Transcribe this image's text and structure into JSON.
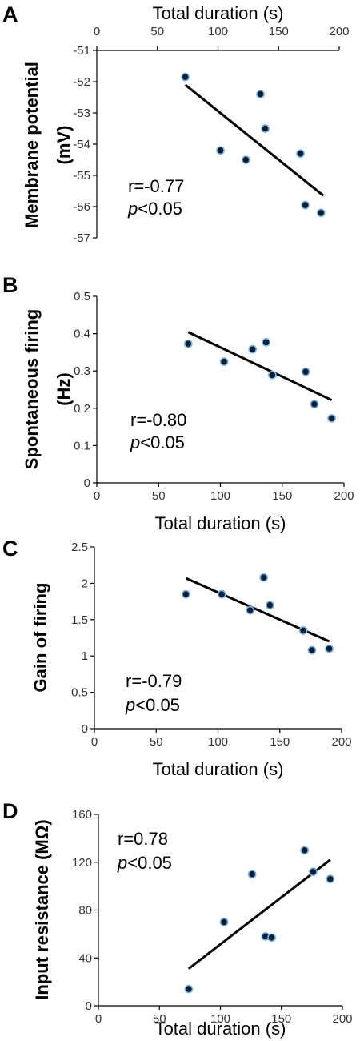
{
  "chart_data": [
    {
      "panel": "A",
      "type": "scatter",
      "xlabel": "Total duration (s)",
      "xaxis_position": "top",
      "xlim": [
        0,
        200
      ],
      "xticks": [
        0,
        50,
        100,
        150,
        200
      ],
      "ylabel_lines": [
        "Membrane potential",
        "(mV)"
      ],
      "ylim": [
        -57,
        -51
      ],
      "yticks": [
        -51,
        -52,
        -53,
        -54,
        -55,
        -56,
        -57
      ],
      "points": [
        {
          "x": 73,
          "y": -51.85
        },
        {
          "x": 102,
          "y": -54.2
        },
        {
          "x": 123,
          "y": -54.5
        },
        {
          "x": 135,
          "y": -52.4
        },
        {
          "x": 139,
          "y": -53.5
        },
        {
          "x": 168,
          "y": -54.3
        },
        {
          "x": 172,
          "y": -55.95
        },
        {
          "x": 185,
          "y": -56.2
        }
      ],
      "fit_line": {
        "x": [
          73,
          187
        ],
        "y": [
          -52.1,
          -55.65
        ]
      },
      "stat_r": "r=-0.77",
      "stat_p": "<0.05"
    },
    {
      "panel": "B",
      "type": "scatter",
      "xlabel": "Total duration (s)",
      "xaxis_position": "bottom",
      "xlim": [
        0,
        200
      ],
      "xticks": [
        0,
        50,
        100,
        150,
        200
      ],
      "ylabel_lines": [
        "Spontaneous firing",
        "(Hz)"
      ],
      "ylim": [
        0,
        0.5
      ],
      "yticks": [
        0,
        0.1,
        0.2,
        0.3,
        0.4,
        0.5
      ],
      "points": [
        {
          "x": 74,
          "y": 0.373
        },
        {
          "x": 103,
          "y": 0.325
        },
        {
          "x": 126,
          "y": 0.358
        },
        {
          "x": 137,
          "y": 0.377
        },
        {
          "x": 142,
          "y": 0.289
        },
        {
          "x": 169,
          "y": 0.298
        },
        {
          "x": 176,
          "y": 0.211
        },
        {
          "x": 190,
          "y": 0.173
        }
      ],
      "fit_line": {
        "x": [
          74,
          190
        ],
        "y": [
          0.404,
          0.222
        ]
      },
      "stat_r": "r=-0.80",
      "stat_p": "<0.05"
    },
    {
      "panel": "C",
      "type": "scatter",
      "xlabel": "Total duration (s)",
      "xaxis_position": "bottom",
      "xlim": [
        0,
        200
      ],
      "xticks": [
        0,
        50,
        100,
        150,
        200
      ],
      "ylabel_lines": [
        "Gain of firing"
      ],
      "ylim": [
        0,
        2.5
      ],
      "yticks": [
        0,
        0.5,
        1,
        1.5,
        2,
        2.5
      ],
      "points": [
        {
          "x": 74,
          "y": 1.85
        },
        {
          "x": 103,
          "y": 1.85
        },
        {
          "x": 126,
          "y": 1.63
        },
        {
          "x": 137,
          "y": 2.08
        },
        {
          "x": 142,
          "y": 1.7
        },
        {
          "x": 169,
          "y": 1.35
        },
        {
          "x": 176,
          "y": 1.08
        },
        {
          "x": 190,
          "y": 1.1
        }
      ],
      "fit_line": {
        "x": [
          74,
          190
        ],
        "y": [
          2.07,
          1.2
        ]
      },
      "stat_r": "r=-0.79",
      "stat_p": "<0.05"
    },
    {
      "panel": "D",
      "type": "scatter",
      "xlabel": "Total duration (s)",
      "xaxis_position": "bottom",
      "xlim": [
        0,
        200
      ],
      "xticks": [
        0,
        50,
        100,
        150,
        200
      ],
      "ylabel_lines": [
        "Input resistance (MΩ)"
      ],
      "ylim": [
        0,
        160
      ],
      "yticks": [
        0,
        40,
        80,
        120,
        160
      ],
      "points": [
        {
          "x": 74,
          "y": 14
        },
        {
          "x": 103,
          "y": 70
        },
        {
          "x": 126,
          "y": 110
        },
        {
          "x": 137,
          "y": 58
        },
        {
          "x": 142,
          "y": 57
        },
        {
          "x": 169,
          "y": 130
        },
        {
          "x": 176,
          "y": 112
        },
        {
          "x": 190,
          "y": 106
        }
      ],
      "fit_line": {
        "x": [
          74,
          190
        ],
        "y": [
          31,
          122
        ]
      },
      "stat_r": "r=0.78",
      "stat_p": "<0.05"
    }
  ],
  "stat_p_symbol": "p"
}
